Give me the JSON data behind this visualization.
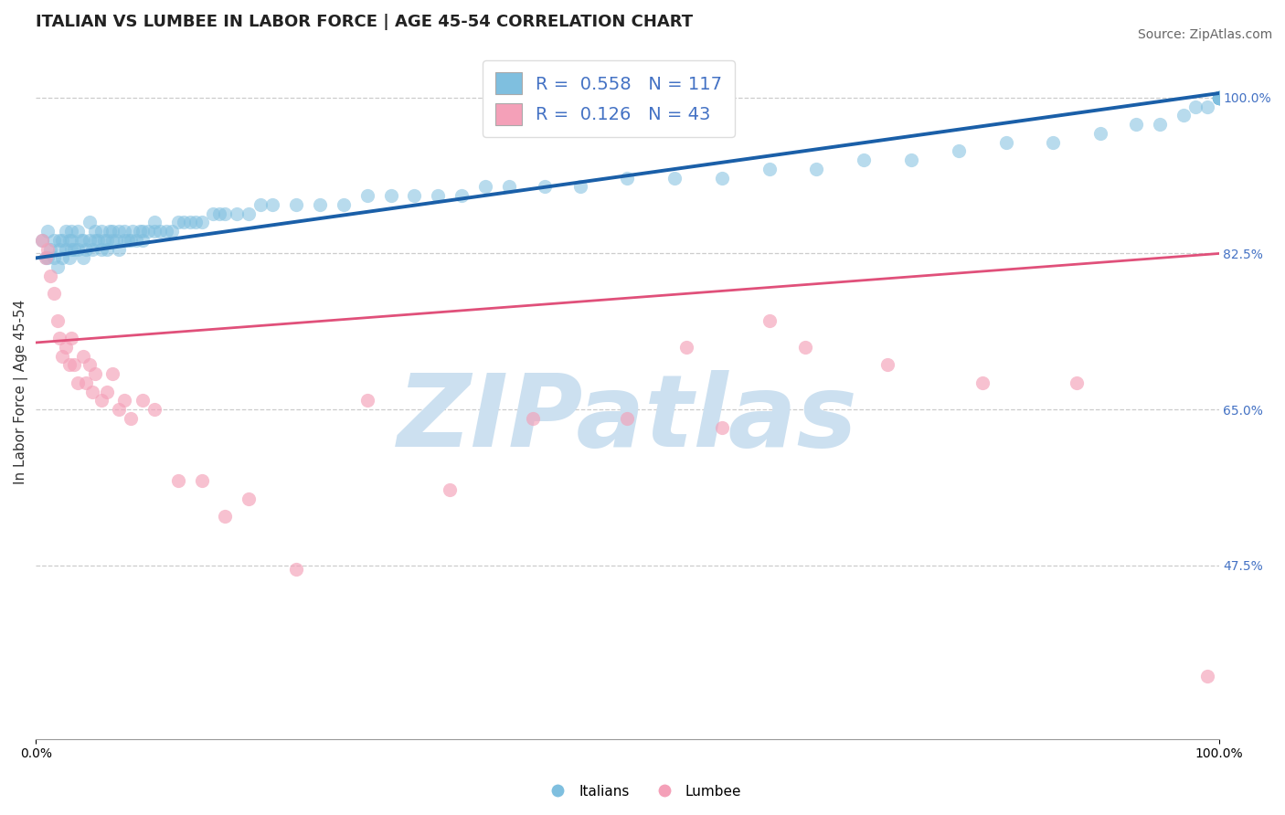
{
  "title": "ITALIAN VS LUMBEE IN LABOR FORCE | AGE 45-54 CORRELATION CHART",
  "source_text": "Source: ZipAtlas.com",
  "ylabel": "In Labor Force | Age 45-54",
  "xlim": [
    0,
    1.0
  ],
  "ylim": [
    0.28,
    1.06
  ],
  "ytick_labels_right": [
    "47.5%",
    "65.0%",
    "82.5%",
    "100.0%"
  ],
  "ytick_values_right": [
    0.475,
    0.65,
    0.825,
    1.0
  ],
  "legend_label1": "R =  0.558   N = 117",
  "legend_label2": "R =  0.126   N = 43",
  "legend_labels_bottom": [
    "Italians",
    "Lumbee"
  ],
  "blue_color": "#7fbfdf",
  "pink_color": "#f4a0b8",
  "blue_line_color": "#1a5fa8",
  "pink_line_color": "#e0507a",
  "title_color": "#222222",
  "r_value_color": "#4472c4",
  "watermark_color": "#cce0f0",
  "background_color": "#ffffff",
  "grid_color": "#cccccc",
  "blue_trendline_y_start": 0.82,
  "blue_trendline_y_end": 1.005,
  "pink_trendline_y_start": 0.725,
  "pink_trendline_y_end": 0.825,
  "italian_x": [
    0.005,
    0.008,
    0.01,
    0.01,
    0.012,
    0.015,
    0.015,
    0.018,
    0.02,
    0.02,
    0.022,
    0.022,
    0.025,
    0.025,
    0.028,
    0.028,
    0.03,
    0.03,
    0.03,
    0.032,
    0.035,
    0.035,
    0.038,
    0.04,
    0.04,
    0.042,
    0.045,
    0.045,
    0.048,
    0.05,
    0.05,
    0.052,
    0.055,
    0.055,
    0.058,
    0.06,
    0.06,
    0.062,
    0.065,
    0.065,
    0.068,
    0.07,
    0.07,
    0.075,
    0.075,
    0.078,
    0.08,
    0.082,
    0.085,
    0.088,
    0.09,
    0.09,
    0.095,
    0.1,
    0.1,
    0.105,
    0.11,
    0.115,
    0.12,
    0.125,
    0.13,
    0.135,
    0.14,
    0.15,
    0.155,
    0.16,
    0.17,
    0.18,
    0.19,
    0.2,
    0.22,
    0.24,
    0.26,
    0.28,
    0.3,
    0.32,
    0.34,
    0.36,
    0.38,
    0.4,
    0.43,
    0.46,
    0.5,
    0.54,
    0.58,
    0.62,
    0.66,
    0.7,
    0.74,
    0.78,
    0.82,
    0.86,
    0.9,
    0.93,
    0.95,
    0.97,
    0.98,
    0.99,
    1.0,
    1.0,
    1.0,
    1.0,
    1.0,
    1.0,
    1.0,
    1.0,
    1.0,
    1.0,
    1.0,
    1.0,
    1.0,
    1.0,
    1.0,
    1.0,
    1.0,
    1.0,
    1.0
  ],
  "italian_y": [
    0.84,
    0.82,
    0.82,
    0.85,
    0.83,
    0.82,
    0.84,
    0.81,
    0.83,
    0.84,
    0.82,
    0.84,
    0.83,
    0.85,
    0.82,
    0.84,
    0.83,
    0.84,
    0.85,
    0.83,
    0.83,
    0.85,
    0.84,
    0.82,
    0.84,
    0.83,
    0.84,
    0.86,
    0.83,
    0.84,
    0.85,
    0.84,
    0.83,
    0.85,
    0.84,
    0.83,
    0.84,
    0.85,
    0.84,
    0.85,
    0.84,
    0.83,
    0.85,
    0.84,
    0.85,
    0.84,
    0.84,
    0.85,
    0.84,
    0.85,
    0.84,
    0.85,
    0.85,
    0.85,
    0.86,
    0.85,
    0.85,
    0.85,
    0.86,
    0.86,
    0.86,
    0.86,
    0.86,
    0.87,
    0.87,
    0.87,
    0.87,
    0.87,
    0.88,
    0.88,
    0.88,
    0.88,
    0.88,
    0.89,
    0.89,
    0.89,
    0.89,
    0.89,
    0.9,
    0.9,
    0.9,
    0.9,
    0.91,
    0.91,
    0.91,
    0.92,
    0.92,
    0.93,
    0.93,
    0.94,
    0.95,
    0.95,
    0.96,
    0.97,
    0.97,
    0.98,
    0.99,
    0.99,
    1.0,
    1.0,
    1.0,
    1.0,
    1.0,
    1.0,
    1.0,
    1.0,
    1.0,
    1.0,
    1.0,
    1.0,
    1.0,
    1.0,
    1.0,
    1.0,
    1.0,
    1.0,
    1.0
  ],
  "lumbee_x": [
    0.005,
    0.008,
    0.01,
    0.012,
    0.015,
    0.018,
    0.02,
    0.022,
    0.025,
    0.028,
    0.03,
    0.032,
    0.035,
    0.04,
    0.042,
    0.045,
    0.048,
    0.05,
    0.055,
    0.06,
    0.065,
    0.07,
    0.075,
    0.08,
    0.09,
    0.1,
    0.12,
    0.14,
    0.16,
    0.18,
    0.22,
    0.28,
    0.35,
    0.42,
    0.5,
    0.55,
    0.58,
    0.62,
    0.65,
    0.72,
    0.8,
    0.88,
    0.99
  ],
  "lumbee_y": [
    0.84,
    0.82,
    0.83,
    0.8,
    0.78,
    0.75,
    0.73,
    0.71,
    0.72,
    0.7,
    0.73,
    0.7,
    0.68,
    0.71,
    0.68,
    0.7,
    0.67,
    0.69,
    0.66,
    0.67,
    0.69,
    0.65,
    0.66,
    0.64,
    0.66,
    0.65,
    0.57,
    0.57,
    0.53,
    0.55,
    0.47,
    0.66,
    0.56,
    0.64,
    0.64,
    0.72,
    0.63,
    0.75,
    0.72,
    0.7,
    0.68,
    0.68,
    0.35
  ]
}
